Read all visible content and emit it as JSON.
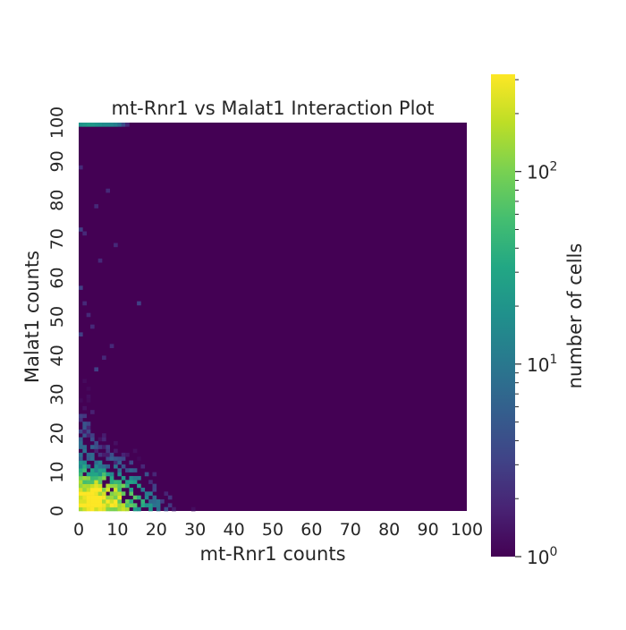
{
  "chart_data": {
    "type": "heatmap",
    "title": "mt-Rnr1 vs Malat1 Interaction Plot",
    "xlabel": "mt-Rnr1 counts",
    "ylabel": "Malat1 counts",
    "xlim": [
      0,
      100
    ],
    "ylim": [
      0,
      100
    ],
    "x_ticks": [
      "0",
      "10",
      "20",
      "30",
      "40",
      "50",
      "60",
      "70",
      "80",
      "90",
      "100"
    ],
    "y_ticks": [
      "0",
      "10",
      "20",
      "30",
      "40",
      "50",
      "60",
      "70",
      "80",
      "90",
      "100"
    ],
    "bin_width": 1,
    "grid": false,
    "colormap": "viridis",
    "colorbar": {
      "label": "number of cells",
      "scale": "log",
      "range": [
        1,
        320
      ],
      "major_ticks": [
        {
          "value": 1,
          "base": "10",
          "exp": "0"
        },
        {
          "value": 10,
          "base": "10",
          "exp": "1"
        },
        {
          "value": 100,
          "base": "10",
          "exp": "2"
        }
      ],
      "minor_ticks": [
        2,
        3,
        4,
        5,
        6,
        7,
        8,
        9,
        20,
        30,
        40,
        50,
        60,
        70,
        80,
        90,
        200,
        300
      ]
    },
    "density_model": {
      "description": "approximate cell counts per 1x1 bin, read from colour",
      "peak_count": 320,
      "peak_at": [
        3,
        2
      ],
      "top_row_bins": [
        {
          "x": 0,
          "count": 20
        },
        {
          "x": 1,
          "count": 22
        },
        {
          "x": 2,
          "count": 25
        },
        {
          "x": 3,
          "count": 22
        },
        {
          "x": 4,
          "count": 20
        },
        {
          "x": 5,
          "count": 18
        },
        {
          "x": 6,
          "count": 16
        },
        {
          "x": 7,
          "count": 15
        },
        {
          "x": 8,
          "count": 14
        },
        {
          "x": 9,
          "count": 12
        },
        {
          "x": 10,
          "count": 8
        },
        {
          "x": 11,
          "count": 4
        },
        {
          "x": 12,
          "count": 2
        }
      ],
      "sparse_bins": [
        {
          "x": 7,
          "y": 82,
          "count": 2
        },
        {
          "x": 4,
          "y": 78,
          "count": 2
        },
        {
          "x": 9,
          "y": 68,
          "count": 2
        },
        {
          "x": 5,
          "y": 64,
          "count": 2
        },
        {
          "x": 15,
          "y": 53,
          "count": 3
        },
        {
          "x": 0,
          "y": 88,
          "count": 2
        },
        {
          "x": 0,
          "y": 72,
          "count": 3
        },
        {
          "x": 1,
          "y": 71,
          "count": 2
        },
        {
          "x": 0,
          "y": 57,
          "count": 3
        },
        {
          "x": 1,
          "y": 53,
          "count": 2
        },
        {
          "x": 2,
          "y": 50,
          "count": 2
        },
        {
          "x": 3,
          "y": 47,
          "count": 2
        },
        {
          "x": 8,
          "y": 42,
          "count": 2
        },
        {
          "x": 6,
          "y": 39,
          "count": 2
        },
        {
          "x": 0,
          "y": 45,
          "count": 3
        },
        {
          "x": 4,
          "y": 36,
          "count": 3
        }
      ]
    }
  }
}
